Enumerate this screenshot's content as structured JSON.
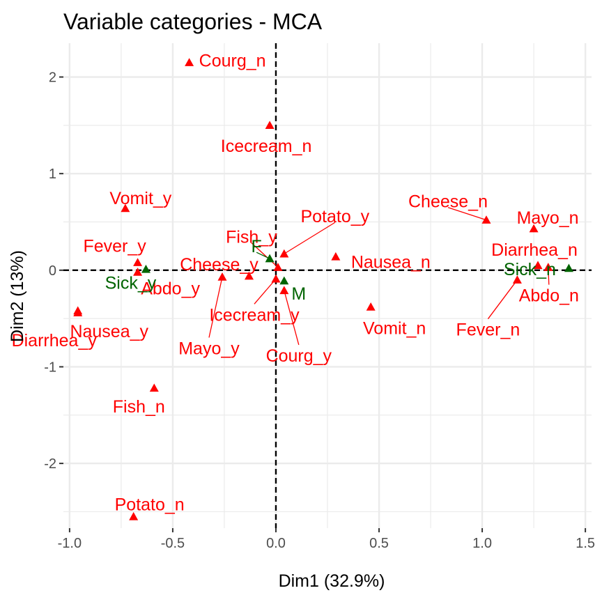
{
  "chart_data": {
    "type": "scatter",
    "title": "Variable categories - MCA",
    "xlabel": "Dim1 (32.9%)",
    "ylabel": "Dim2 (13%)",
    "xlim": [
      -1.03,
      1.53
    ],
    "ylim": [
      -2.67,
      2.35
    ],
    "x_ticks": [
      -1.0,
      -0.5,
      0.0,
      0.5,
      1.0,
      1.5
    ],
    "x_tick_labels": [
      "-1.0",
      "-0.5",
      "0.0",
      "0.5",
      "1.0",
      "1.5"
    ],
    "y_ticks": [
      -2,
      -1,
      0,
      1,
      2
    ],
    "y_tick_labels": [
      "-2",
      "-1",
      "0",
      "1",
      "2"
    ],
    "grid": true,
    "reference_lines": {
      "x": 0,
      "y": 0,
      "style": "dashed"
    },
    "colors": {
      "active": "#ff0000",
      "supplementary": "#006400",
      "grid": "#ebebeb",
      "background": "#ffffff"
    },
    "series": [
      {
        "role": "active",
        "color": "#ff0000",
        "points": [
          {
            "label": "Courg_n",
            "x": -0.42,
            "y": 2.15
          },
          {
            "label": "Icecream_n",
            "x": -0.03,
            "y": 1.5
          },
          {
            "label": "Vomit_y",
            "x": -0.73,
            "y": 0.64
          },
          {
            "label": "Potato_y",
            "x": 0.04,
            "y": 0.17
          },
          {
            "label": "Fish_y",
            "x": 0.01,
            "y": 0.03
          },
          {
            "label": "Cheese_y",
            "x": -0.13,
            "y": -0.06
          },
          {
            "label": "Fever_y",
            "x": -0.67,
            "y": 0.08
          },
          {
            "label": "Abdo_y",
            "x": -0.67,
            "y": -0.02
          },
          {
            "label": "Diarrhea_y",
            "x": -0.96,
            "y": -0.42
          },
          {
            "label": "Nausea_y",
            "x": -0.96,
            "y": -0.44
          },
          {
            "label": "Mayo_y",
            "x": -0.26,
            "y": -0.07
          },
          {
            "label": "Icecream_y",
            "x": 0.0,
            "y": -0.09
          },
          {
            "label": "Courg_y",
            "x": 0.04,
            "y": -0.21
          },
          {
            "label": "Nausea_n",
            "x": 0.29,
            "y": 0.14
          },
          {
            "label": "Vomit_n",
            "x": 0.46,
            "y": -0.38
          },
          {
            "label": "Cheese_n",
            "x": 1.02,
            "y": 0.52
          },
          {
            "label": "Mayo_n",
            "x": 1.25,
            "y": 0.43
          },
          {
            "label": "Diarrhea_n",
            "x": 1.27,
            "y": 0.05
          },
          {
            "label": "Abdo_n",
            "x": 1.32,
            "y": 0.03
          },
          {
            "label": "Fever_n",
            "x": 1.17,
            "y": -0.1
          },
          {
            "label": "Fish_n",
            "x": -0.59,
            "y": -1.22
          },
          {
            "label": "Potato_n",
            "x": -0.69,
            "y": -2.55
          }
        ]
      },
      {
        "role": "supplementary",
        "color": "#006400",
        "points": [
          {
            "label": "F",
            "x": -0.03,
            "y": 0.12
          },
          {
            "label": "M",
            "x": 0.04,
            "y": -0.11
          },
          {
            "label": "Sick_y",
            "x": -0.63,
            "y": 0.01
          },
          {
            "label": "Sick_n",
            "x": 1.42,
            "y": 0.02
          }
        ]
      }
    ]
  }
}
